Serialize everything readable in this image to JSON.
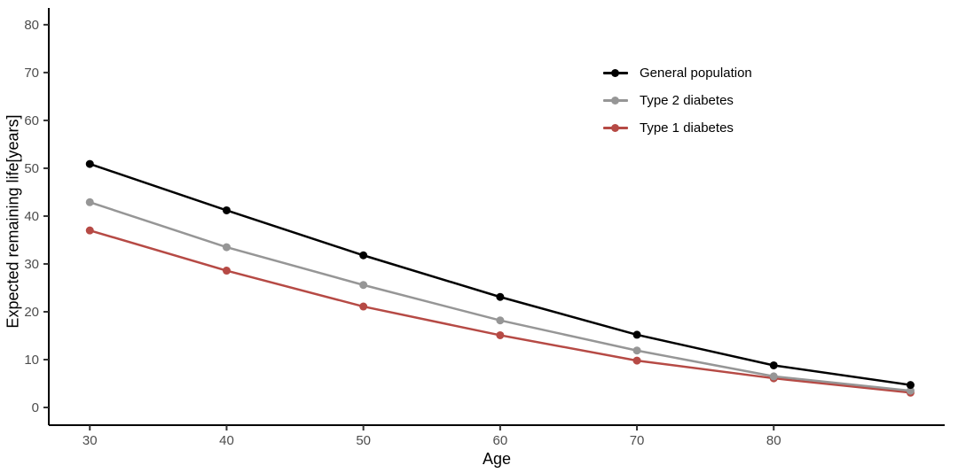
{
  "chart_data": {
    "type": "line",
    "title": "",
    "xlabel": "Age",
    "ylabel": "Expected remaining life[years]",
    "x": [
      30,
      40,
      50,
      60,
      70,
      80,
      90
    ],
    "series": [
      {
        "name": "General population",
        "color": "#000000",
        "values": [
          50.9,
          41.2,
          31.8,
          23.1,
          15.2,
          8.8,
          4.7
        ]
      },
      {
        "name": "Type 2 diabetes",
        "color": "#969696",
        "values": [
          42.9,
          33.5,
          25.6,
          18.2,
          11.9,
          6.5,
          3.5
        ]
      },
      {
        "name": "Type 1 diabetes",
        "color": "#b64a45",
        "values": [
          37.0,
          28.6,
          21.1,
          15.1,
          9.8,
          6.1,
          3.1
        ]
      }
    ],
    "x_ticks": [
      30,
      40,
      50,
      60,
      70,
      80
    ],
    "y_ticks": [
      0,
      10,
      20,
      30,
      40,
      50,
      60,
      70,
      80
    ],
    "xlim": [
      27,
      92.5
    ],
    "ylim": [
      -3.7,
      83.5
    ],
    "grid": false,
    "marker": "circle",
    "legend_position": "top-right-inside",
    "axis_color": "#000000",
    "tick_label_color": "#4d4d4d"
  }
}
